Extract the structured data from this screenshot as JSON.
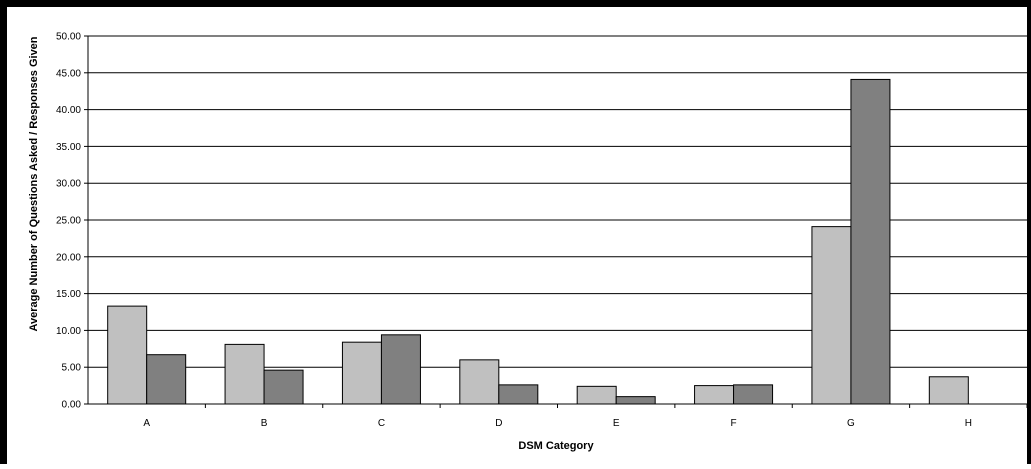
{
  "chart_data": {
    "type": "bar",
    "title": "",
    "xlabel": "DSM Category",
    "ylabel": "Average Number of Questions Asked / Responses Given",
    "categories": [
      "A",
      "B",
      "C",
      "D",
      "E",
      "F",
      "G",
      "H"
    ],
    "series": [
      {
        "values": [
          13.3,
          8.1,
          8.4,
          6.0,
          2.4,
          2.5,
          24.1,
          3.7
        ],
        "color": "#c0c0c0"
      },
      {
        "values": [
          6.7,
          4.6,
          9.4,
          2.6,
          1.0,
          2.6,
          44.1,
          0
        ],
        "color": "#808080"
      }
    ],
    "ylim": [
      0,
      50
    ],
    "yticks": [
      "0.00",
      "5.00",
      "10.00",
      "15.00",
      "20.00",
      "25.00",
      "30.00",
      "35.00",
      "40.00",
      "45.00",
      "50.00"
    ],
    "grid": true,
    "legend": "none"
  }
}
